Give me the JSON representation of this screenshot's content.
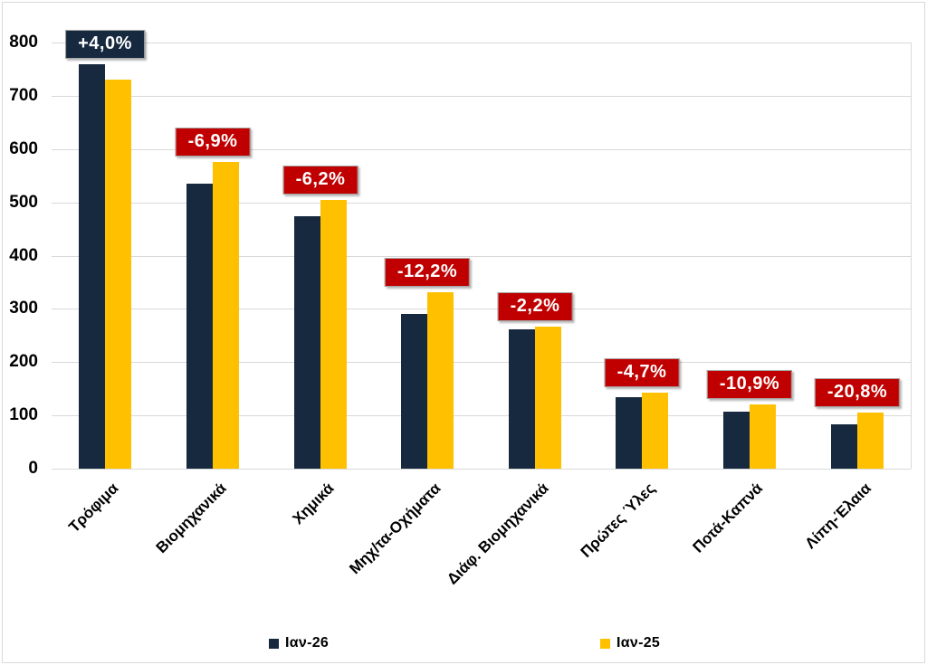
{
  "chart_data": {
    "type": "bar",
    "title": "",
    "xlabel": "",
    "ylabel": "",
    "categories": [
      "Τρόφιμα",
      "Βιομηχανικά",
      "Χημικά",
      "Μηχ/τα-Οχήματα",
      "Διάφ. Βιομηχανικά",
      "Πρώτες Ύλες",
      "Ποτά-Καπνά",
      "Λίπη-Έλαια"
    ],
    "series": [
      {
        "name": "Ιαν-26",
        "color": "#16293F",
        "values": [
          760,
          535,
          474,
          291,
          261,
          135,
          107,
          83
        ]
      },
      {
        "name": "Ιαν-25",
        "color": "#FFC000",
        "values": [
          730,
          575,
          505,
          331,
          267,
          142,
          120,
          105
        ]
      }
    ],
    "data_labels": [
      {
        "text": "+4,0%",
        "bg": "#16293F"
      },
      {
        "text": "-6,9%",
        "bg": "#C00000"
      },
      {
        "text": "-6,2%",
        "bg": "#C00000"
      },
      {
        "text": "-12,2%",
        "bg": "#C00000"
      },
      {
        "text": "-2,2%",
        "bg": "#C00000"
      },
      {
        "text": "-4,7%",
        "bg": "#C00000"
      },
      {
        "text": "-10,9%",
        "bg": "#C00000"
      },
      {
        "text": "-20,8%",
        "bg": "#C00000"
      }
    ],
    "data_label_text_color": "#FFFFFF",
    "y_axis": {
      "ylim": [
        0,
        800
      ],
      "tick_interval": 100,
      "ticks": [
        800,
        700,
        600,
        500,
        400,
        300,
        200,
        100,
        0
      ],
      "tick_labels": [
        "800",
        "700",
        "600",
        "500",
        "400",
        "300",
        "200",
        "100",
        "0"
      ]
    },
    "grid": true,
    "gridline_color": "#D9D9D9",
    "legend_position": "bottom"
  }
}
